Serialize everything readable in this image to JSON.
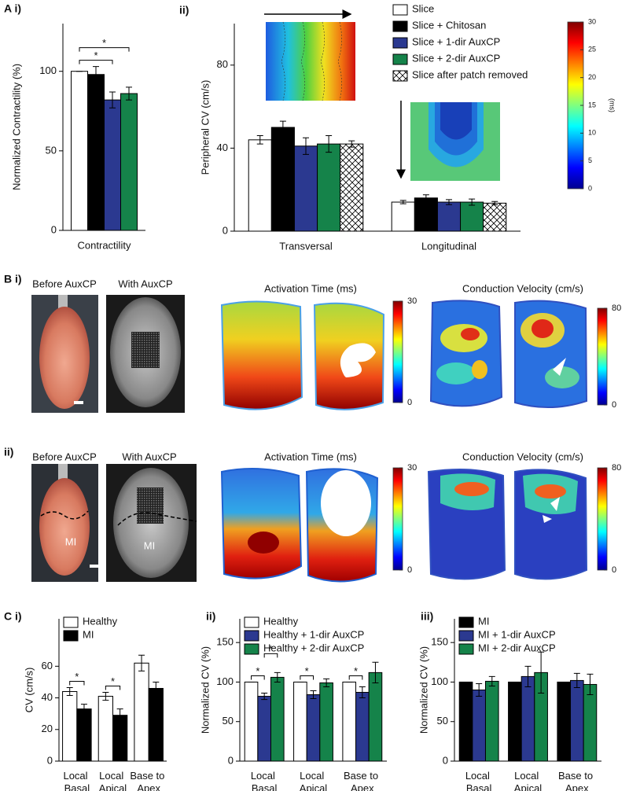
{
  "panel_b": {
    "rows": [
      {
        "label": "B i)",
        "photo_titles": [
          "Before AuxCP",
          "With AuxCP"
        ],
        "activation_title": "Activation Time (ms)",
        "activation_colorbar": {
          "lim": [
            0,
            30
          ],
          "ticks": [
            0,
            30
          ]
        },
        "velocity_title": "Conduction Velocity (cm/s)",
        "velocity_colorbar": {
          "lim": [
            0,
            80
          ],
          "ticks": [
            0,
            80
          ]
        }
      },
      {
        "label": "ii)",
        "photo_titles": [
          "Before AuxCP",
          "With AuxCP"
        ],
        "mi_labels": [
          "MI",
          "MI"
        ],
        "activation_title": "Activation Time (ms)",
        "activation_colorbar": {
          "lim": [
            0,
            30
          ],
          "ticks": [
            0,
            30
          ]
        },
        "velocity_title": "Conduction Velocity  (cm/s)",
        "velocity_colorbar": {
          "lim": [
            0,
            80
          ],
          "ticks": [
            0,
            80
          ]
        }
      }
    ]
  },
  "chart_data": [
    {
      "type": "bar",
      "panel": "A i)",
      "ylabel": "Normalized Contractility (%)",
      "categories": [
        "Contractility"
      ],
      "series": [
        {
          "color": "#ffffff",
          "values": [
            100
          ],
          "errors": [
            0
          ]
        },
        {
          "color": "#000000",
          "values": [
            98
          ],
          "errors": [
            5
          ]
        },
        {
          "color": "#2b3990",
          "values": [
            82
          ],
          "errors": [
            5
          ]
        },
        {
          "color": "#15834a",
          "values": [
            86
          ],
          "errors": [
            4
          ]
        }
      ],
      "ylim": [
        0,
        130
      ],
      "yticks": [
        0,
        50,
        100
      ],
      "significance": [
        {
          "category": 0,
          "series": [
            0,
            2
          ],
          "label": "*"
        },
        {
          "category": 0,
          "series": [
            0,
            3
          ],
          "label": "*"
        }
      ]
    },
    {
      "type": "bar",
      "panel": "ii)",
      "ylabel": "Peripheral CV (cm/s)",
      "categories": [
        "Transversal",
        "Longitudinal"
      ],
      "series": [
        {
          "name": "Slice",
          "color": "#ffffff",
          "values": [
            44,
            14
          ],
          "errors": [
            2,
            0.8
          ]
        },
        {
          "name": "Slice + Chitosan",
          "color": "#000000",
          "values": [
            50,
            16
          ],
          "errors": [
            3,
            1.5
          ]
        },
        {
          "name": "Slice + 1-dir AuxCP",
          "color": "#2b3990",
          "values": [
            41,
            14
          ],
          "errors": [
            4,
            1.2
          ]
        },
        {
          "name": "Slice + 2-dir AuxCP",
          "color": "#15834a",
          "values": [
            42,
            14
          ],
          "errors": [
            4,
            1.5
          ]
        },
        {
          "name": "Slice after patch removed",
          "color": "#ffffff",
          "hatch": true,
          "values": [
            42,
            13.5
          ],
          "errors": [
            1.5,
            0.8
          ]
        }
      ],
      "ylim": [
        0,
        100
      ],
      "yticks": [
        0,
        40,
        80
      ],
      "legend": "top-right",
      "colorbar": {
        "label": "(ms)",
        "lim": [
          0,
          30
        ],
        "ticks": [
          0,
          5,
          10,
          15,
          20,
          25,
          30
        ]
      }
    },
    {
      "type": "bar",
      "panel": "C i)",
      "ylabel": "CV (cm/s)",
      "categories": [
        "Local Basal",
        "Local Apical",
        "Base to Apex"
      ],
      "series": [
        {
          "name": "Healthy",
          "color": "#ffffff",
          "values": [
            44,
            41,
            62
          ],
          "errors": [
            2.5,
            2.5,
            5
          ]
        },
        {
          "name": "MI",
          "color": "#000000",
          "values": [
            33,
            29,
            46
          ],
          "errors": [
            3,
            4,
            4
          ]
        }
      ],
      "ylim": [
        0,
        90
      ],
      "yticks": [
        0,
        20,
        40,
        60
      ],
      "legend": "top-left",
      "significance": [
        {
          "category": 0,
          "series": [
            0,
            1
          ],
          "label": "*"
        },
        {
          "category": 1,
          "series": [
            0,
            1
          ],
          "label": "*"
        }
      ]
    },
    {
      "type": "bar",
      "panel": "ii)",
      "ylabel": "Normalized CV (%)",
      "categories": [
        "Local Basal",
        "Local Apical",
        "Base to Apex"
      ],
      "series": [
        {
          "name": "Healthy",
          "color": "#ffffff",
          "values": [
            100,
            100,
            100
          ],
          "errors": [
            0,
            0,
            0
          ]
        },
        {
          "name": "Healthy + 1-dir AuxCP",
          "color": "#2b3990",
          "values": [
            82,
            84,
            87
          ],
          "errors": [
            4,
            5,
            7
          ]
        },
        {
          "name": "Healthy + 2-dir AuxCP",
          "color": "#15834a",
          "values": [
            106,
            99,
            112
          ],
          "errors": [
            6,
            5,
            13
          ]
        }
      ],
      "ylim": [
        0,
        180
      ],
      "yticks": [
        0,
        50,
        100,
        150
      ],
      "legend": "top-left",
      "significance": [
        {
          "category": 0,
          "series": [
            0,
            1
          ],
          "label": "*"
        },
        {
          "category": 0,
          "series": [
            1,
            2
          ],
          "label": "*"
        },
        {
          "category": 1,
          "series": [
            0,
            1
          ],
          "label": "*"
        },
        {
          "category": 2,
          "series": [
            0,
            1
          ],
          "label": "*"
        }
      ]
    },
    {
      "type": "bar",
      "panel": "iii)",
      "ylabel": "Normalized CV (%)",
      "categories": [
        "Local Basal",
        "Local Apical",
        "Base to Apex"
      ],
      "series": [
        {
          "name": "MI",
          "color": "#000000",
          "values": [
            100,
            100,
            100
          ],
          "errors": [
            0,
            0,
            0
          ]
        },
        {
          "name": "MI + 1-dir AuxCP",
          "color": "#2b3990",
          "values": [
            90,
            107,
            102
          ],
          "errors": [
            8,
            13,
            9
          ]
        },
        {
          "name": "MI + 2-dir AuxCP",
          "color": "#15834a",
          "values": [
            101,
            112,
            97
          ],
          "errors": [
            6,
            26,
            13
          ]
        }
      ],
      "ylim": [
        0,
        180
      ],
      "yticks": [
        0,
        50,
        100,
        150
      ],
      "legend": "top-left"
    }
  ]
}
